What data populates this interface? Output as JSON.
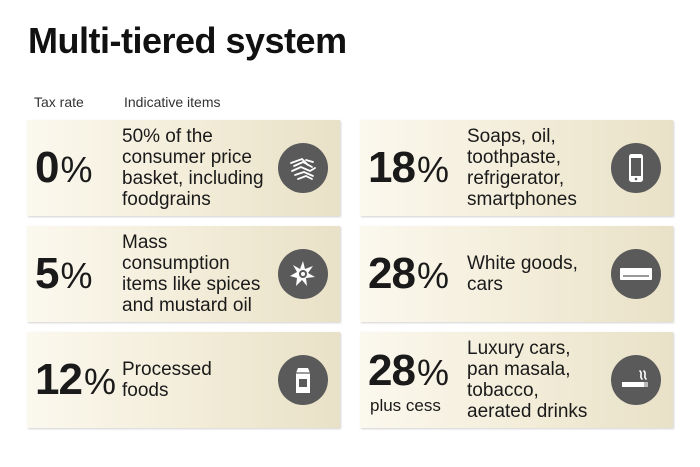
{
  "title": "Multi-tiered system",
  "headers": {
    "tax_rate": "Tax rate",
    "items": "Indicative items"
  },
  "tiers": [
    {
      "rate": "0",
      "pct": "%",
      "lines": [
        "50% of the",
        "consumer price",
        "basket, including",
        "foodgrains"
      ],
      "icon": "grain-icon"
    },
    {
      "rate": "18",
      "pct": "%",
      "lines": [
        "Soaps, oil,",
        "toothpaste,",
        "refrigerator,",
        "smartphones"
      ],
      "icon": "smartphone-icon"
    },
    {
      "rate": "5",
      "pct": "%",
      "lines": [
        "Mass",
        "consumption",
        "items like spices",
        "and mustard oil"
      ],
      "icon": "spices-icon"
    },
    {
      "rate": "28",
      "pct": "%",
      "lines": [
        "White goods,",
        "cars"
      ],
      "icon": "air-conditioner-icon"
    },
    {
      "rate": "12",
      "pct": "%",
      "lines": [
        "Processed",
        "foods"
      ],
      "icon": "food-carton-icon"
    },
    {
      "rate": "28",
      "pct": "%",
      "sub": "plus cess",
      "lines": [
        "Luxury cars,",
        "pan masala,",
        "tobacco,",
        "aerated drinks"
      ],
      "icon": "cigarette-icon"
    }
  ],
  "colors": {
    "icon_bg": "#5a5a5a",
    "card_light": "#fbf8ee",
    "card_dark": "#e9e1c7"
  }
}
